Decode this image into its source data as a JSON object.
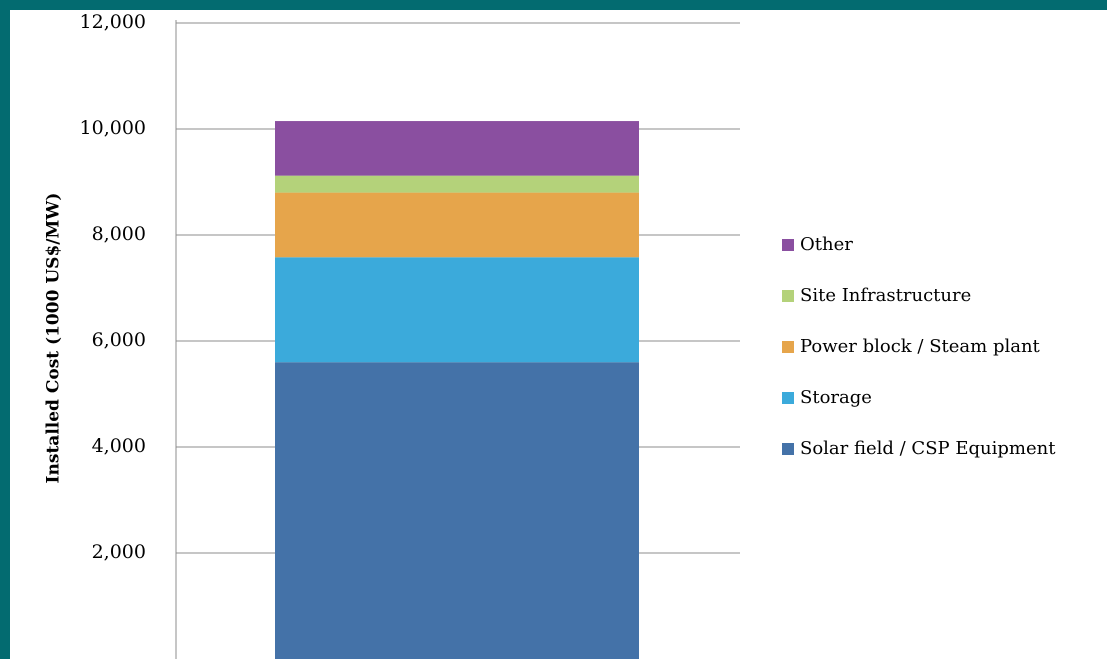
{
  "chart_data": {
    "type": "bar",
    "stacked": true,
    "title": "",
    "xlabel": "",
    "ylabel": "Installed Cost (1000 US$/MW)",
    "ylim": [
      0,
      12000
    ],
    "yticks": [
      2000,
      4000,
      6000,
      8000,
      10000,
      12000
    ],
    "ytick_labels": [
      "2,000",
      "4,000",
      "6,000",
      "8,000",
      "10,000",
      "12,000"
    ],
    "categories": [
      ""
    ],
    "grid": true,
    "legend_position": "right",
    "series": [
      {
        "name": "Solar field / CSP Equipment",
        "values": [
          5600
        ],
        "color": "#4472A8"
      },
      {
        "name": "Storage",
        "values": [
          1980
        ],
        "color": "#3BAADB"
      },
      {
        "name": "Power block / Steam plant",
        "values": [
          1220
        ],
        "color": "#E6A54B"
      },
      {
        "name": "Site Infrastructure",
        "values": [
          320
        ],
        "color": "#B4D27A"
      },
      {
        "name": "Other",
        "values": [
          1030
        ],
        "color": "#8A4FA0"
      }
    ],
    "legend_order": [
      "Other",
      "Site Infrastructure",
      "Power block / Steam plant",
      "Storage",
      "Solar field / CSP Equipment"
    ]
  }
}
